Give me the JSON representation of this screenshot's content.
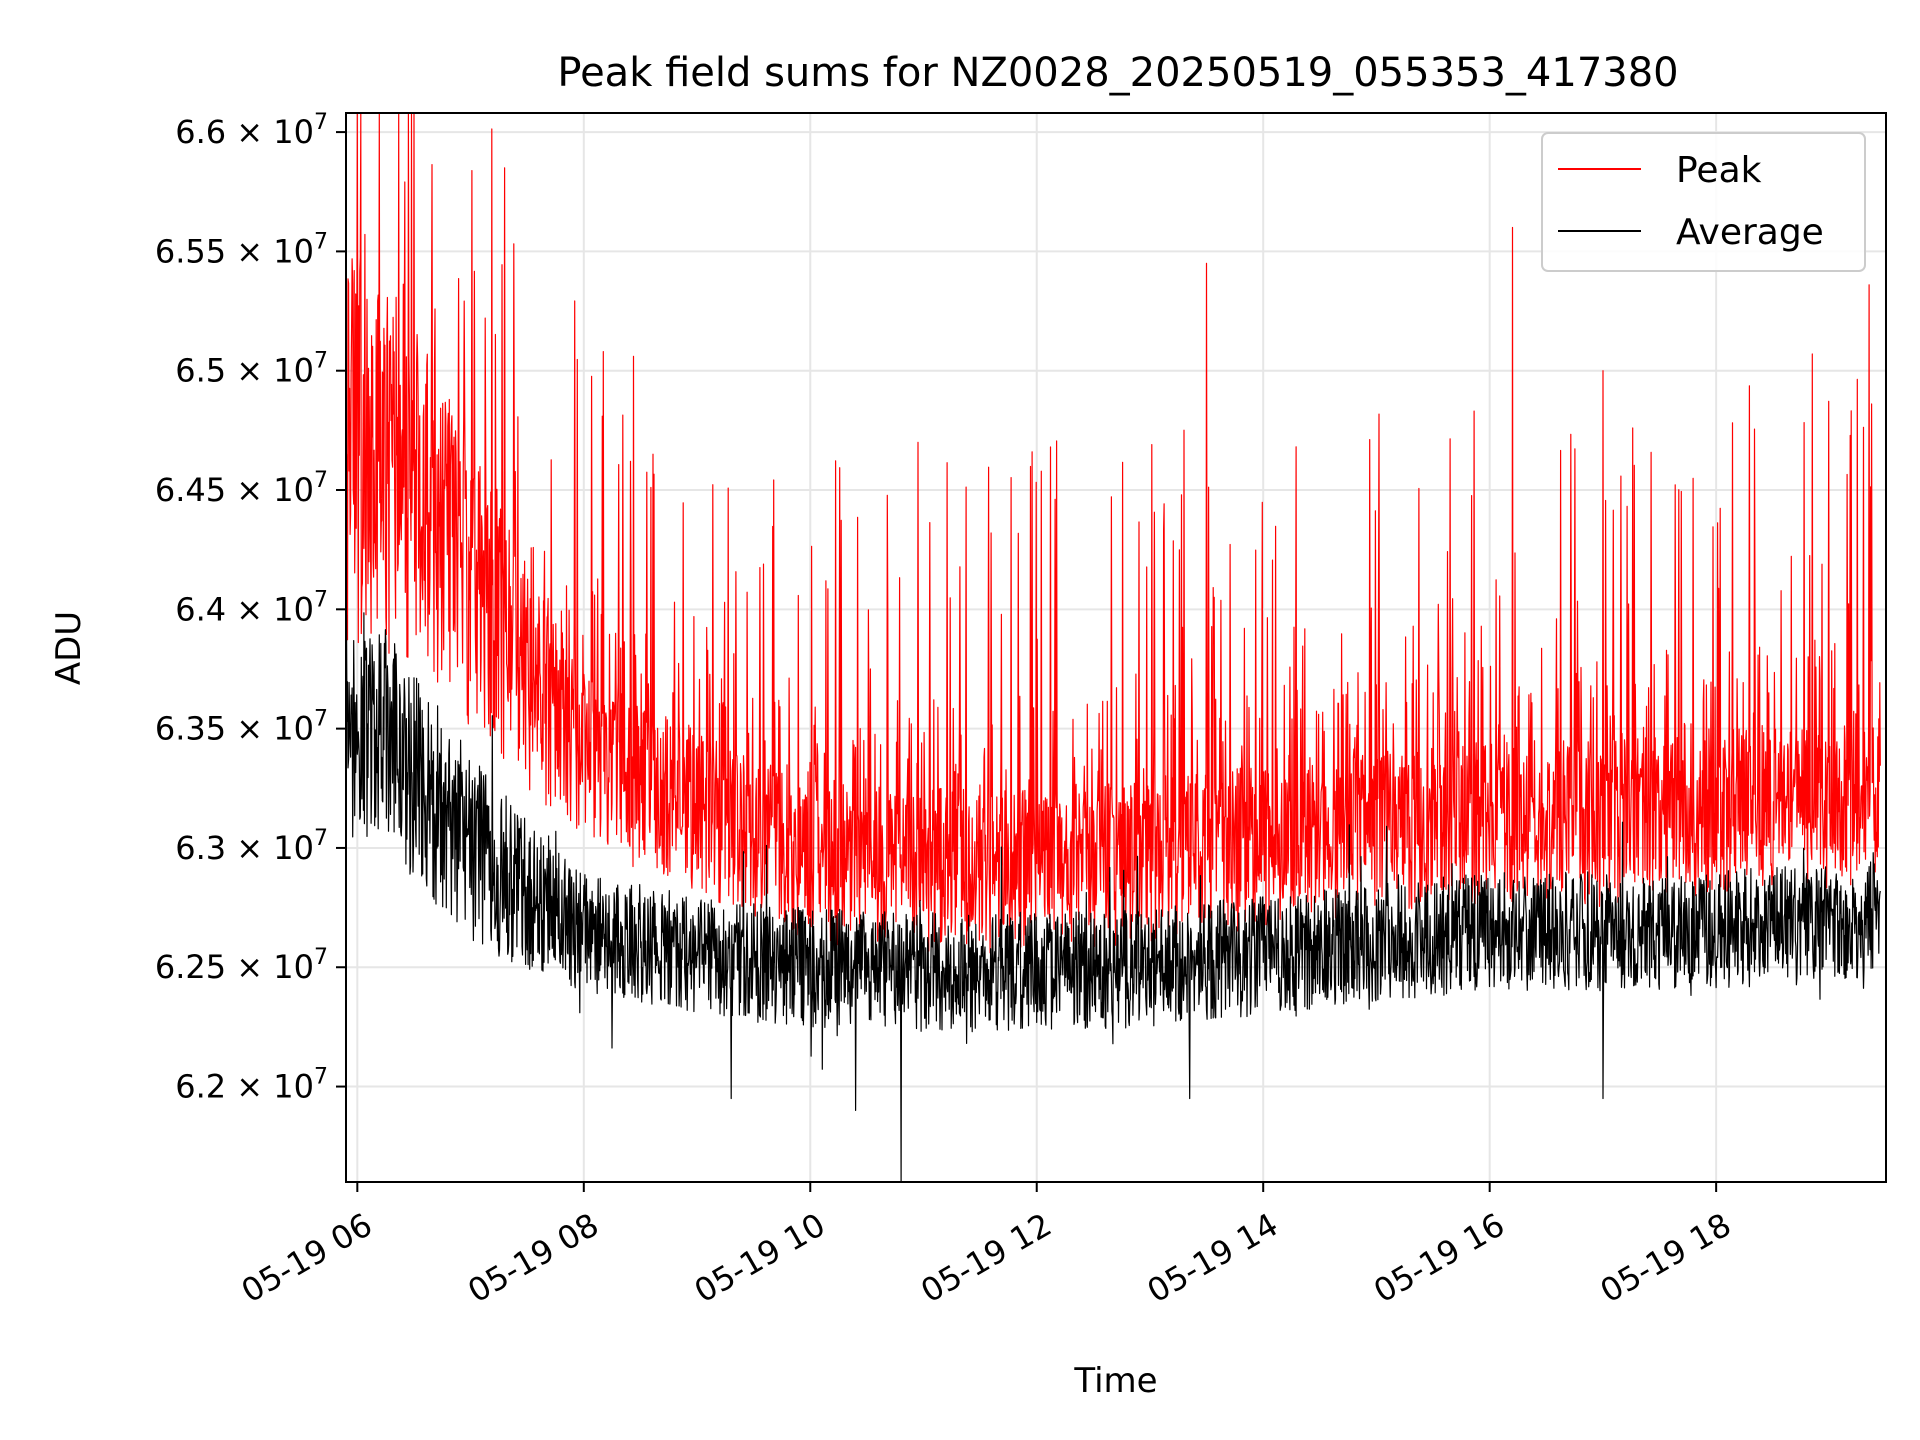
{
  "chart_data": {
    "type": "line",
    "title": "Peak field sums for NZ0028_20250519_055353_417380",
    "xlabel": "Time",
    "ylabel": "ADU",
    "x_tick_labels": [
      "05-19 06",
      "05-19 08",
      "05-19 10",
      "05-19 12",
      "05-19 14",
      "05-19 16",
      "05-19 18"
    ],
    "x_tick_hours": [
      6,
      8,
      10,
      12,
      14,
      16,
      18
    ],
    "x_range_hours": [
      5.9,
      19.5
    ],
    "y_tick_mantissas": [
      "6.2",
      "6.25",
      "6.3",
      "6.35",
      "6.4",
      "6.45",
      "6.5",
      "6.55",
      "6.6"
    ],
    "y_tick_values": [
      62000000,
      62500000,
      63000000,
      63500000,
      64000000,
      64500000,
      65000000,
      65500000,
      66000000
    ],
    "y_tick_multiplier": "× 10",
    "y_tick_exponent": "7",
    "ylim": [
      61600000,
      66080000
    ],
    "grid": true,
    "legend_position": "upper right",
    "series": [
      {
        "name": "Peak",
        "color": "#ff0000",
        "trend_hours": [
          5.9,
          6.5,
          7.0,
          7.5,
          8.0,
          8.5,
          9.0,
          9.5,
          10.0,
          11.0,
          12.0,
          13.0,
          14.0,
          15.0,
          16.0,
          17.0,
          18.0,
          19.0,
          19.5
        ],
        "trend_values": [
          64700000,
          64500000,
          64100000,
          63700000,
          63400000,
          63250000,
          63150000,
          63050000,
          62950000,
          62900000,
          62900000,
          62950000,
          63000000,
          63050000,
          63100000,
          63100000,
          63150000,
          63150000,
          63200000
        ],
        "spike_hours": [
          6.45,
          7.3,
          13.5,
          16.2,
          17.0,
          18.85,
          19.35
        ],
        "spike_values": [
          66080000,
          65850000,
          65450000,
          65600000,
          65000000,
          65070000,
          65360000
        ]
      },
      {
        "name": "Average",
        "color": "#000000",
        "trend_hours": [
          5.9,
          6.5,
          7.0,
          7.5,
          8.0,
          8.5,
          9.0,
          9.5,
          10.0,
          11.0,
          12.0,
          13.0,
          14.0,
          15.0,
          16.0,
          17.0,
          18.0,
          19.0,
          19.5
        ],
        "trend_values": [
          63600000,
          63300000,
          63000000,
          62800000,
          62650000,
          62600000,
          62550000,
          62520000,
          62500000,
          62480000,
          62480000,
          62500000,
          62550000,
          62600000,
          62650000,
          62650000,
          62650000,
          62700000,
          62700000
        ],
        "dip_hours": [
          9.3,
          10.4,
          10.8,
          13.35,
          17.0
        ],
        "dip_values": [
          61950000,
          61900000,
          61600000,
          61950000,
          61950000
        ]
      }
    ]
  }
}
